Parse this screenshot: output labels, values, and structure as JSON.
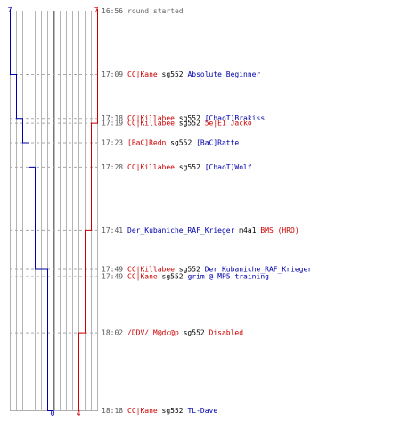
{
  "colors": {
    "blue": "#0000aa",
    "red": "#cc0000",
    "black": "#000000",
    "time": "#555555",
    "status": "#666666",
    "grid": "#b4b4b4",
    "center": "#777777",
    "dash": "#aaaaaa"
  },
  "score": {
    "blue_start": "7",
    "red_start": "7",
    "blue_end": "0",
    "red_end": "4"
  },
  "events": [
    {
      "time": "16:56",
      "status": "round started",
      "parts": []
    },
    {
      "time": "17:09",
      "status": "",
      "parts": [
        {
          "text": "CC|Kane",
          "color": "red"
        },
        {
          "text": " sg552 ",
          "color": "black"
        },
        {
          "text": "Absolute Beginner",
          "color": "blue"
        }
      ]
    },
    {
      "time": "17:18",
      "status": "",
      "parts": [
        {
          "text": "CC|Killabee",
          "color": "red"
        },
        {
          "text": " sg552 ",
          "color": "black"
        },
        {
          "text": "[ChaoT]Brakiss",
          "color": "blue"
        }
      ]
    },
    {
      "time": "17:19",
      "status": "",
      "parts": [
        {
          "text": "CC|Killabee",
          "color": "red"
        },
        {
          "text": " sg552 ",
          "color": "black"
        },
        {
          "text": "5e|E1 Jacko",
          "color": "red"
        }
      ]
    },
    {
      "time": "17:23",
      "status": "",
      "parts": [
        {
          "text": "[BaC]Redn",
          "color": "red"
        },
        {
          "text": " sg552 ",
          "color": "black"
        },
        {
          "text": "[BaC]Ratte",
          "color": "blue"
        }
      ]
    },
    {
      "time": "17:28",
      "status": "",
      "parts": [
        {
          "text": "CC|Killabee",
          "color": "red"
        },
        {
          "text": " sg552 ",
          "color": "black"
        },
        {
          "text": "[ChaoT]Wolf",
          "color": "blue"
        }
      ]
    },
    {
      "time": "17:41",
      "status": "",
      "parts": [
        {
          "text": "Der_Kubaniche_RAF_Krieger",
          "color": "blue"
        },
        {
          "text": " m4a1 ",
          "color": "black"
        },
        {
          "text": "BMS (HRO)",
          "color": "red"
        }
      ]
    },
    {
      "time": "17:49",
      "status": "",
      "parts": [
        {
          "text": "CC|Killabee",
          "color": "red"
        },
        {
          "text": " sg552 ",
          "color": "black"
        },
        {
          "text": "Der_Kubaniche_RAF_Krieger",
          "color": "blue"
        }
      ]
    },
    {
      "time": "17:49",
      "status": "",
      "parts": [
        {
          "text": "CC|Kane",
          "color": "red"
        },
        {
          "text": " sg552 ",
          "color": "black"
        },
        {
          "text": "grim @ MP5 training",
          "color": "blue"
        }
      ]
    },
    {
      "time": "18:02",
      "status": "",
      "parts": [
        {
          "text": "/DDV/ M@dc@p",
          "color": "red"
        },
        {
          "text": " sg552 ",
          "color": "black"
        },
        {
          "text": "Disabled",
          "color": "red"
        }
      ]
    },
    {
      "time": "18:18",
      "status": "",
      "parts": [
        {
          "text": "CC|Kane",
          "color": "red"
        },
        {
          "text": " sg552 ",
          "color": "black"
        },
        {
          "text": "TL-Dave",
          "color": "blue"
        }
      ]
    }
  ],
  "chart_data": {
    "type": "line",
    "xlabel": "",
    "ylabel": "",
    "x": [
      "16:56",
      "17:09",
      "17:18",
      "17:19",
      "17:23",
      "17:28",
      "17:41",
      "17:49",
      "17:49",
      "18:02",
      "18:18"
    ],
    "series": [
      {
        "values": [
          7,
          6,
          5,
          5,
          4,
          3,
          3,
          2,
          1,
          1,
          0
        ],
        "color": "blue"
      },
      {
        "values": [
          7,
          7,
          7,
          6,
          6,
          6,
          5,
          5,
          5,
          4,
          4
        ],
        "color": "red"
      }
    ],
    "ylim": [
      0,
      7
    ],
    "grid": true
  }
}
